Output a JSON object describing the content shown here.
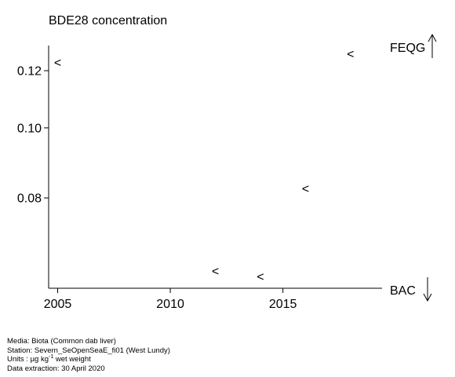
{
  "chart_data": {
    "type": "scatter",
    "title": "BDE28 concentration",
    "marker": "<",
    "marker_meaning": "",
    "x_ticks": [
      2005,
      2010,
      2015
    ],
    "y_ticks": [
      "0.08",
      "0.10",
      "0.12"
    ],
    "xlim": [
      2004.6,
      2019.4
    ],
    "ylim": [
      0.06,
      0.13
    ],
    "y_scale": "log",
    "points": [
      {
        "x": 2005,
        "y": 0.123
      },
      {
        "x": 2012,
        "y": 0.0633
      },
      {
        "x": 2014,
        "y": 0.0622
      },
      {
        "x": 2016,
        "y": 0.0823
      },
      {
        "x": 2018,
        "y": 0.1265
      }
    ],
    "thresholds": [
      {
        "label": "FEQG",
        "direction": "up"
      },
      {
        "label": "BAC",
        "direction": "down"
      }
    ]
  },
  "footer": {
    "media": "Media: Biota (Common dab liver)",
    "station": "Station: Severn_SeOpenSeaE_fi01 (West Lundy)",
    "units_prefix": "Units : ",
    "units_unit": "µg kg",
    "units_exp": "-1",
    "units_suffix": " wet weight",
    "extraction": "Data extraction: 30 April 2020"
  }
}
